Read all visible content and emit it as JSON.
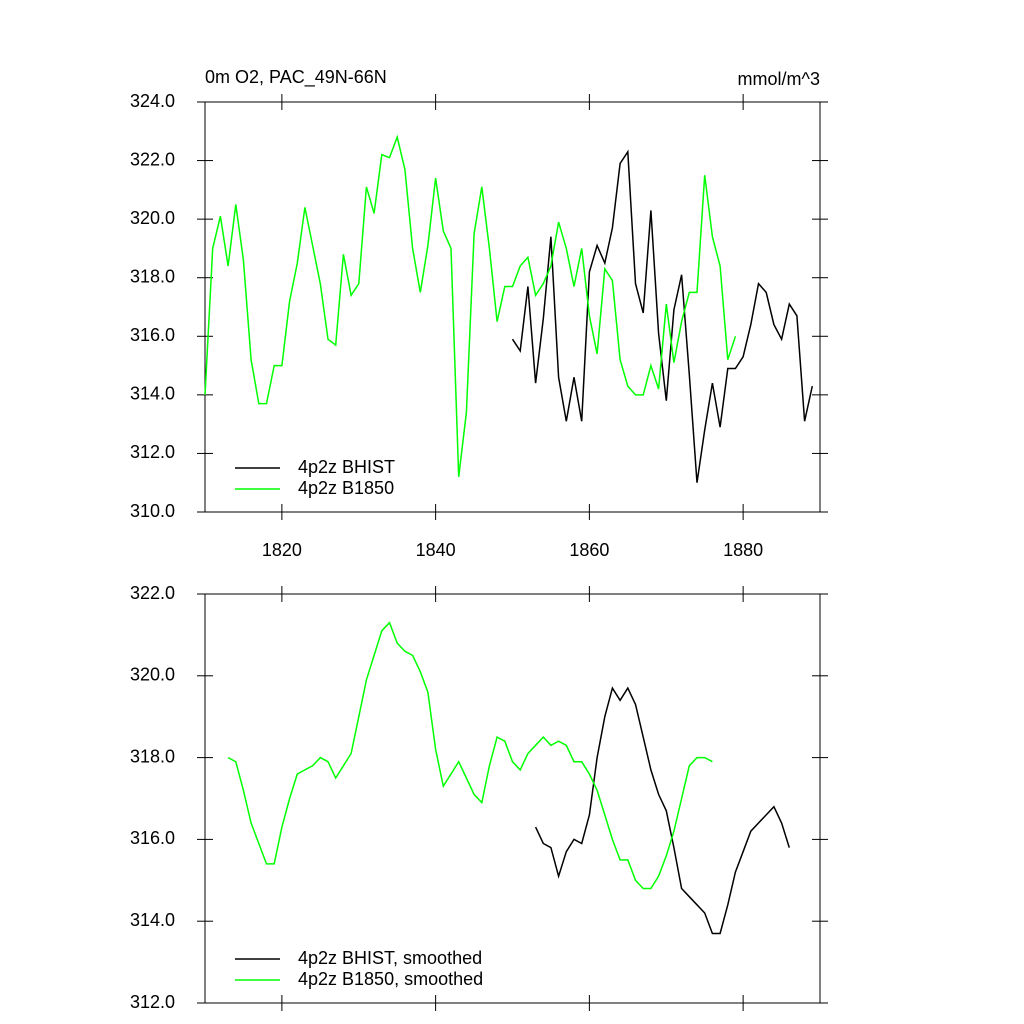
{
  "chart_data": [
    {
      "type": "line",
      "title": "0m O2, PAC_49N-66N",
      "units": "mmol/m^3",
      "x": [
        1810,
        1811,
        1812,
        1813,
        1814,
        1815,
        1816,
        1817,
        1818,
        1819,
        1820,
        1821,
        1822,
        1823,
        1824,
        1825,
        1826,
        1827,
        1828,
        1829,
        1830,
        1831,
        1832,
        1833,
        1834,
        1835,
        1836,
        1837,
        1838,
        1839,
        1840,
        1841,
        1842,
        1843,
        1844,
        1845,
        1846,
        1847,
        1848,
        1849,
        1850,
        1851,
        1852,
        1853,
        1854,
        1855,
        1856,
        1857,
        1858,
        1859,
        1860,
        1861,
        1862,
        1863,
        1864,
        1865,
        1866,
        1867,
        1868,
        1869,
        1870,
        1871,
        1872,
        1873,
        1874,
        1875,
        1876,
        1877,
        1878,
        1879,
        1880,
        1881,
        1882,
        1883,
        1884,
        1885,
        1886,
        1887,
        1888,
        1889
      ],
      "series": [
        {
          "name": "4p2z BHIST",
          "color": "#000000",
          "values": [
            null,
            null,
            null,
            null,
            null,
            null,
            null,
            null,
            null,
            null,
            null,
            null,
            null,
            null,
            null,
            null,
            null,
            null,
            null,
            null,
            null,
            null,
            null,
            null,
            null,
            null,
            null,
            null,
            null,
            null,
            null,
            null,
            null,
            null,
            null,
            null,
            null,
            null,
            null,
            null,
            315.9,
            315.5,
            317.7,
            314.4,
            316.6,
            319.4,
            314.6,
            313.1,
            314.6,
            313.1,
            318.2,
            319.1,
            318.5,
            319.7,
            321.9,
            322.3,
            317.8,
            316.8,
            320.3,
            316.1,
            313.8,
            316.9,
            318.1,
            314.7,
            311.0,
            312.8,
            314.4,
            312.9,
            314.9,
            314.9,
            315.3,
            316.4,
            317.8,
            317.5,
            316.4,
            315.9,
            317.1,
            316.7,
            313.1,
            314.3
          ]
        },
        {
          "name": "4p2z B1850",
          "color": "#00ff00",
          "values": [
            314.0,
            319.0,
            320.1,
            318.4,
            320.5,
            318.6,
            315.2,
            313.7,
            313.7,
            315.0,
            315.0,
            317.2,
            318.5,
            320.4,
            319.1,
            317.8,
            315.9,
            315.7,
            318.8,
            317.4,
            317.8,
            321.1,
            320.2,
            322.2,
            322.1,
            322.8,
            321.7,
            319.0,
            317.5,
            319.1,
            321.4,
            319.6,
            319.0,
            311.2,
            313.4,
            319.5,
            321.1,
            319.0,
            316.5,
            317.7,
            317.7,
            318.4,
            318.7,
            317.4,
            317.8,
            318.4,
            319.9,
            319.0,
            317.7,
            319.0,
            316.7,
            315.4,
            318.3,
            317.9,
            315.2,
            314.3,
            314.0,
            314.0,
            315.0,
            314.2,
            317.1,
            315.1,
            316.5,
            317.5,
            317.5,
            321.5,
            319.4,
            318.4,
            315.2,
            316.0,
            null,
            null,
            null,
            null,
            null,
            null,
            null,
            null,
            null,
            null
          ]
        }
      ],
      "xlim": [
        1810,
        1890
      ],
      "xticks": [
        1820,
        1840,
        1860,
        1880
      ],
      "ylim": [
        310,
        324
      ],
      "yticks": [
        {
          "value": 310,
          "label": "310.0"
        },
        {
          "value": 312,
          "label": "312.0"
        },
        {
          "value": 314,
          "label": "314.0"
        },
        {
          "value": 316,
          "label": "316.0"
        },
        {
          "value": 318,
          "label": "318.0"
        },
        {
          "value": 320,
          "label": "320.0"
        },
        {
          "value": 322,
          "label": "322.0"
        },
        {
          "value": 324,
          "label": "324.0"
        }
      ],
      "legend": "lower-left"
    },
    {
      "type": "line",
      "x": [
        1813,
        1814,
        1815,
        1816,
        1817,
        1818,
        1819,
        1820,
        1821,
        1822,
        1823,
        1824,
        1825,
        1826,
        1827,
        1828,
        1829,
        1830,
        1831,
        1832,
        1833,
        1834,
        1835,
        1836,
        1837,
        1838,
        1839,
        1840,
        1841,
        1842,
        1843,
        1844,
        1845,
        1846,
        1847,
        1848,
        1849,
        1850,
        1851,
        1852,
        1853,
        1854,
        1855,
        1856,
        1857,
        1858,
        1859,
        1860,
        1861,
        1862,
        1863,
        1864,
        1865,
        1866,
        1867,
        1868,
        1869,
        1870,
        1871,
        1872,
        1873,
        1874,
        1875,
        1876,
        1877,
        1878,
        1879,
        1880,
        1881,
        1882,
        1883,
        1884,
        1885,
        1886
      ],
      "series": [
        {
          "name": "4p2z BHIST, smoothed",
          "color": "#000000",
          "values": [
            null,
            null,
            null,
            null,
            null,
            null,
            null,
            null,
            null,
            null,
            null,
            null,
            null,
            null,
            null,
            null,
            null,
            null,
            null,
            null,
            null,
            null,
            null,
            null,
            null,
            null,
            null,
            null,
            null,
            null,
            null,
            null,
            null,
            null,
            null,
            null,
            null,
            null,
            null,
            null,
            316.3,
            315.9,
            315.8,
            315.1,
            315.7,
            316.0,
            315.9,
            316.6,
            318.0,
            319.0,
            319.7,
            319.4,
            319.7,
            319.3,
            318.5,
            317.7,
            317.1,
            316.7,
            315.8,
            314.8,
            314.6,
            314.4,
            314.2,
            313.7,
            313.7,
            314.4,
            315.2,
            315.7,
            316.2,
            316.4,
            316.6,
            316.8,
            316.4,
            315.8
          ]
        },
        {
          "name": "4p2z B1850, smoothed",
          "color": "#00ff00",
          "values": [
            318.0,
            317.9,
            317.2,
            316.4,
            315.9,
            315.4,
            315.4,
            316.3,
            317.0,
            317.6,
            317.7,
            317.8,
            318.0,
            317.9,
            317.5,
            317.8,
            318.1,
            319.0,
            319.9,
            320.5,
            321.1,
            321.3,
            320.8,
            320.6,
            320.5,
            320.1,
            319.6,
            318.2,
            317.3,
            317.6,
            317.9,
            317.5,
            317.1,
            316.9,
            317.8,
            318.5,
            318.4,
            317.9,
            317.7,
            318.1,
            318.3,
            318.5,
            318.3,
            318.4,
            318.3,
            317.9,
            317.9,
            317.6,
            317.2,
            316.6,
            316.0,
            315.5,
            315.5,
            315.0,
            314.8,
            314.8,
            315.1,
            315.6,
            316.2,
            317.0,
            317.8,
            318.0,
            318.0,
            317.9,
            null,
            null,
            null,
            null,
            null,
            null,
            null,
            null,
            null,
            null
          ]
        }
      ],
      "xlim": [
        1810,
        1890
      ],
      "xticks": [
        {
          "value": 1820,
          "label": null
        },
        {
          "value": 1840,
          "label": null
        },
        {
          "value": 1860,
          "label": null
        },
        {
          "value": 1880,
          "label": null
        }
      ],
      "ylim": [
        312,
        322
      ],
      "yticks": [
        {
          "value": 312,
          "label": "312.0"
        },
        {
          "value": 314,
          "label": "314.0"
        },
        {
          "value": 316,
          "label": "316.0"
        },
        {
          "value": 318,
          "label": "318.0"
        },
        {
          "value": 320,
          "label": "320.0"
        },
        {
          "value": 322,
          "label": "322.0"
        }
      ],
      "legend": "lower-left"
    }
  ]
}
